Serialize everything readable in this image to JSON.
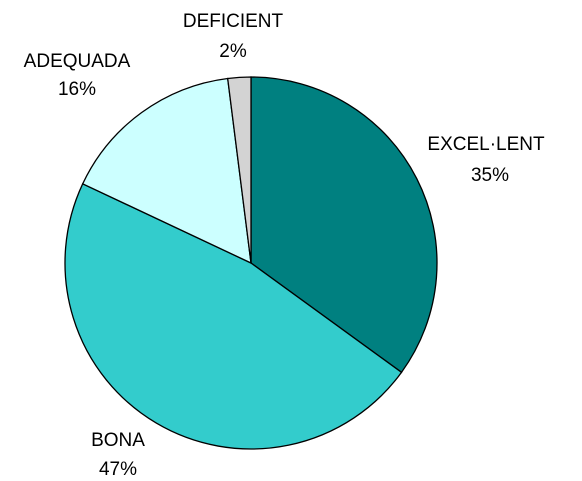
{
  "chart_data": {
    "type": "pie",
    "categories": [
      "EXCEL·LENT",
      "BONA",
      "ADEQUADA",
      "DEFICIENT"
    ],
    "values": [
      35,
      47,
      16,
      2
    ],
    "value_labels": [
      "35%",
      "47%",
      "16%",
      "2%"
    ],
    "colors": [
      "#008080",
      "#33CCCC",
      "#CCFFFF",
      "#D3D3D3"
    ]
  }
}
